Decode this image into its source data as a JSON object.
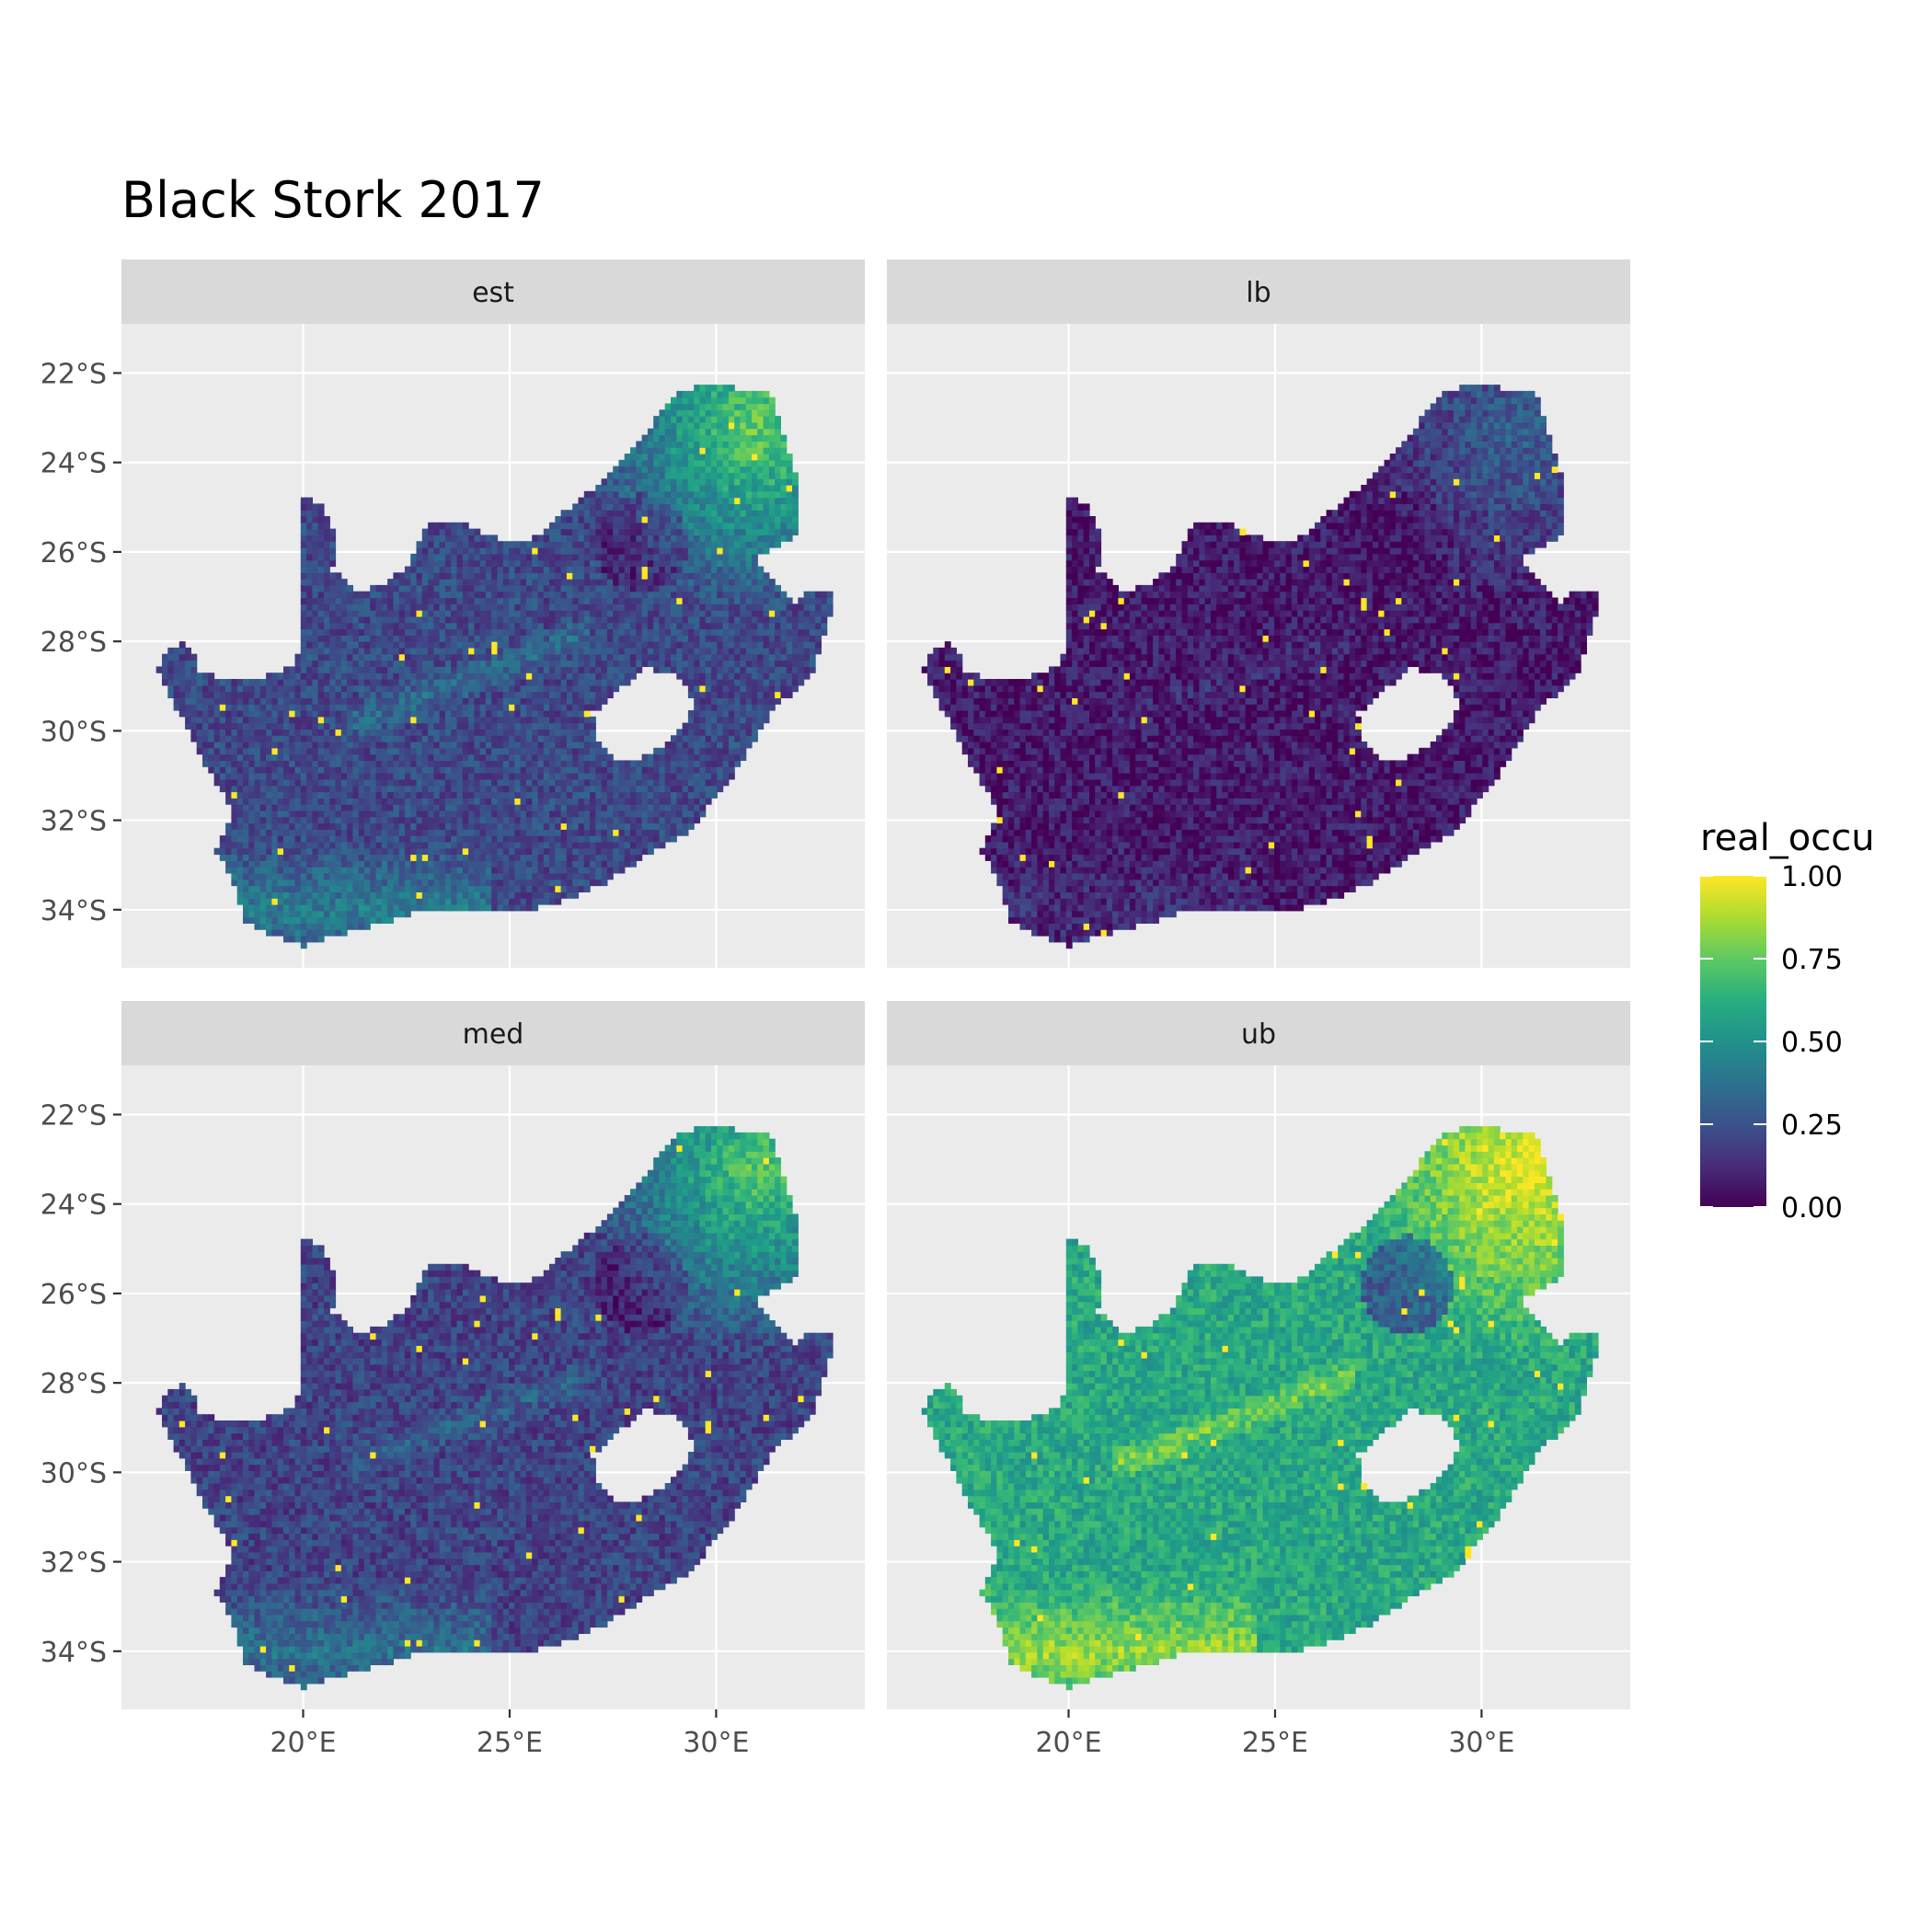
{
  "title": "Black Stork 2017",
  "x_ticks": [
    "20°E",
    "25°E",
    "30°E"
  ],
  "y_ticks": [
    "22°S",
    "24°S",
    "26°S",
    "28°S",
    "30°S",
    "32°S",
    "34°S"
  ],
  "x_tick_values": [
    20,
    25,
    30
  ],
  "y_tick_values": [
    -22,
    -24,
    -26,
    -28,
    -30,
    -32,
    -34
  ],
  "lon_range": [
    15.6,
    33.6
  ],
  "lat_range": [
    -35.3,
    -20.9
  ],
  "panels": [
    {
      "id": "est",
      "label": "est",
      "base": 0.22,
      "ne_boost": 0.55,
      "corridor": 0.15,
      "south": 0.2
    },
    {
      "id": "lb",
      "label": "lb",
      "base": 0.07,
      "ne_boost": 0.25,
      "corridor": 0.05,
      "south": 0.06
    },
    {
      "id": "med",
      "label": "med",
      "base": 0.2,
      "ne_boost": 0.55,
      "corridor": 0.12,
      "south": 0.18
    },
    {
      "id": "ub",
      "label": "ub",
      "base": 0.6,
      "ne_boost": 0.38,
      "corridor": 0.2,
      "south": 0.25
    }
  ],
  "legend": {
    "title": "real_occu",
    "labels": [
      "1.00",
      "0.75",
      "0.50",
      "0.25",
      "0.00"
    ],
    "values": [
      1.0,
      0.75,
      0.5,
      0.25,
      0.0
    ],
    "palette": "viridis"
  },
  "colors": {
    "panel_bg": "#ebebeb",
    "strip_bg": "#d9d9d9",
    "grid": "#ffffff"
  }
}
